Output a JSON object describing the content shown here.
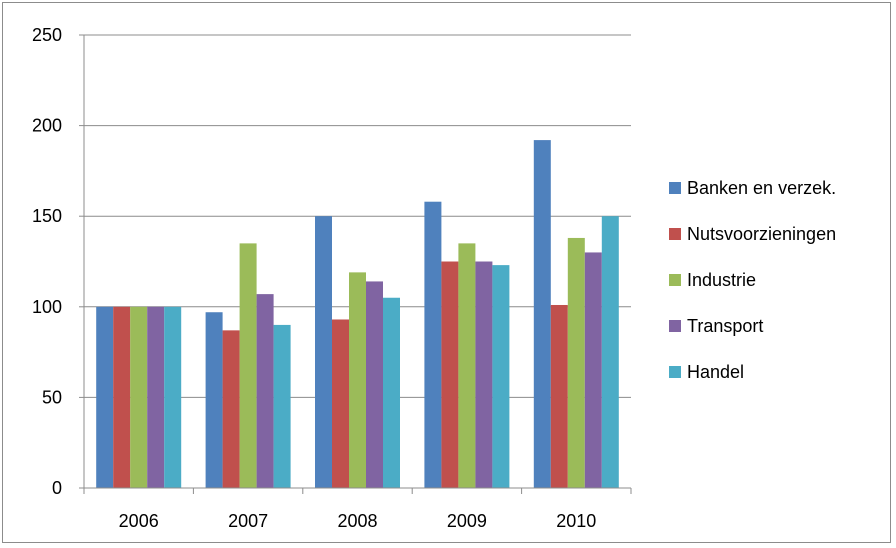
{
  "chart_data": {
    "type": "bar",
    "categories": [
      "2006",
      "2007",
      "2008",
      "2009",
      "2010"
    ],
    "series": [
      {
        "name": "Banken en verzek.",
        "color": "#4f81bd",
        "values": [
          100,
          97,
          150,
          158,
          192
        ]
      },
      {
        "name": "Nutsvoorzieningen",
        "color": "#c0504d",
        "values": [
          100,
          87,
          93,
          125,
          101
        ]
      },
      {
        "name": "Industrie",
        "color": "#9bbb59",
        "values": [
          100,
          135,
          119,
          135,
          138
        ]
      },
      {
        "name": "Transport",
        "color": "#8064a2",
        "values": [
          100,
          107,
          114,
          125,
          130
        ]
      },
      {
        "name": "Handel",
        "color": "#4bacc6",
        "values": [
          100,
          90,
          105,
          123,
          150
        ]
      }
    ],
    "ylim": [
      0,
      250
    ],
    "yticks": [
      "0",
      "50",
      "100",
      "150",
      "200",
      "250"
    ],
    "grid": true,
    "legend": "right"
  }
}
